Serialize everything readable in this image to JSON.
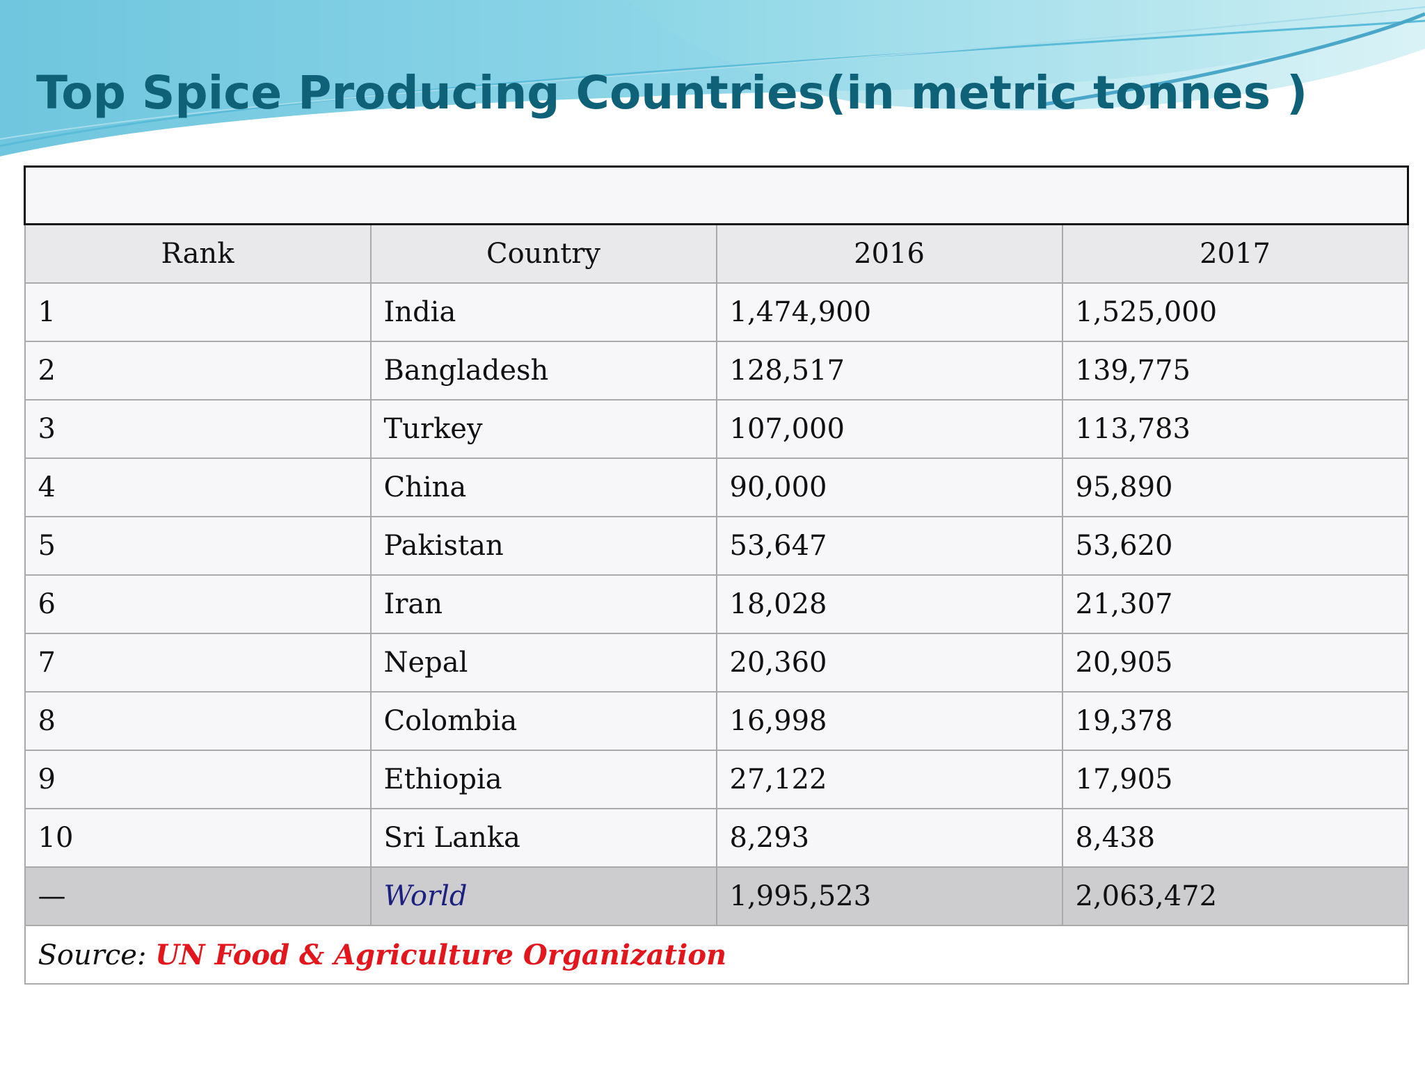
{
  "slide": {
    "title": "Top Spice Producing Countries(in metric tonnes )"
  },
  "table": {
    "columns": [
      "Rank",
      "Country",
      "2016",
      "2017"
    ],
    "rows": [
      {
        "rank": "1",
        "country": "India",
        "y2016": "1,474,900",
        "y2017": "1,525,000"
      },
      {
        "rank": "2",
        "country": "Bangladesh",
        "y2016": "128,517",
        "y2017": "139,775"
      },
      {
        "rank": "3",
        "country": "Turkey",
        "y2016": "107,000",
        "y2017": "113,783"
      },
      {
        "rank": "4",
        "country": "China",
        "y2016": "90,000",
        "y2017": "95,890"
      },
      {
        "rank": "5",
        "country": "Pakistan",
        "y2016": "53,647",
        "y2017": "53,620"
      },
      {
        "rank": "6",
        "country": "Iran",
        "y2016": "18,028",
        "y2017": "21,307"
      },
      {
        "rank": "7",
        "country": "Nepal",
        "y2016": "20,360",
        "y2017": "20,905"
      },
      {
        "rank": "8",
        "country": "Colombia",
        "y2016": "16,998",
        "y2017": "19,378"
      },
      {
        "rank": "9",
        "country": "Ethiopia",
        "y2016": "27,122",
        "y2017": "17,905"
      },
      {
        "rank": "10",
        "country": "Sri Lanka",
        "y2016": "8,293",
        "y2017": "8,438"
      }
    ],
    "total": {
      "rank": "—",
      "country": "World",
      "y2016": "1,995,523",
      "y2017": "2,063,472"
    },
    "source": {
      "label": "Source:",
      "org": "UN Food & Agriculture Organization"
    }
  },
  "colors": {
    "title": "#0f6178",
    "wave_light": "#bfe9ef",
    "wave_mid": "#8fd3e6",
    "wave_dark": "#5bbcd9",
    "world_text": "#1c2180",
    "source_org": "#e2161c",
    "world_row_bg": "#cdcdcf",
    "header_bg": "#e9e9eb"
  }
}
